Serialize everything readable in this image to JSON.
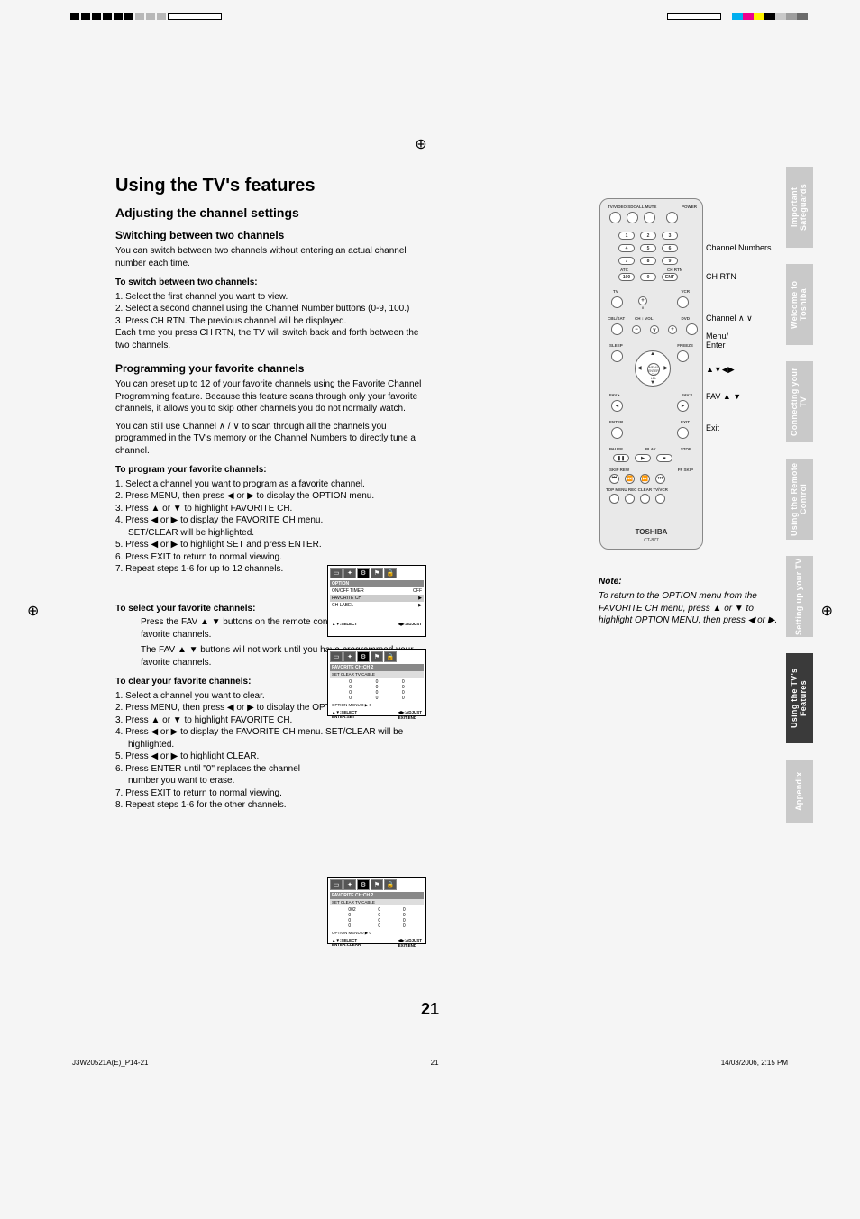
{
  "page_number": "21",
  "footer": {
    "left": "J3W20521A(E)_P14-21",
    "mid": "21",
    "right": "14/03/2006, 2:15 PM"
  },
  "colors": {
    "cyan": "#00aeef",
    "magenta": "#ec008c",
    "yellow": "#fff200",
    "tab_inactive": "#c9c9c9",
    "tab_active": "#3a3a3a"
  },
  "tabs": [
    "Important Safeguards",
    "Welcome to Toshiba",
    "Connecting your TV",
    "Using the Remote Control",
    "Setting up your TV",
    "Using the TV's Features",
    "Appendix"
  ],
  "tabs_active_index": 5,
  "h1": "Using the TV's features",
  "h2": "Adjusting the channel settings",
  "switch": {
    "title": "Switching between two channels",
    "intro": "You can switch between two channels without entering an actual channel number each time.",
    "sub": "To switch between two channels:",
    "steps": [
      "1. Select the first channel you want to view.",
      "2. Select a second channel using the Channel Number buttons (0-9, 100.)",
      "3. Press CH RTN. The previous channel will be displayed."
    ],
    "outro": "Each time you press CH RTN, the TV will switch back and forth between the two channels."
  },
  "program": {
    "title": "Programming your favorite channels",
    "p1": "You can preset up to 12 of your favorite channels using the Favorite Channel Programming feature. Because this feature scans through only your favorite channels, it allows you to skip other channels you do not normally watch.",
    "p2": "You can still use Channel ∧ / ∨ to scan through all the channels you programmed in the TV's memory or the Channel Numbers to directly tune a channel.",
    "sub": "To program your favorite channels:",
    "steps": [
      "1. Select a channel you want to program as a favorite channel.",
      "2. Press MENU, then press ◀ or ▶ to display the OPTION menu.",
      "3. Press ▲ or ▼ to highlight FAVORITE CH.",
      "4. Press ◀ or ▶ to display the FAVORITE CH menu. SET/CLEAR will be highlighted.",
      "5. Press ◀ or ▶ to highlight SET and press ENTER.",
      "6. Press EXIT to return to normal viewing.",
      "7. Repeat steps 1-6 for up to 12 channels."
    ]
  },
  "select": {
    "sub": "To select your favorite channels:",
    "p1": "Press the FAV ▲ ▼ buttons on the remote control to select your favorite channels.",
    "p2": "The FAV ▲ ▼ buttons will not work until you have programmed your favorite channels."
  },
  "clear": {
    "sub": "To clear your favorite channels:",
    "steps": [
      "1. Select a channel you want to clear.",
      "2. Press MENU, then press ◀ or ▶ to display the OPTION menu.",
      "3. Press ▲ or ▼ to highlight FAVORITE CH.",
      "4. Press ◀ or ▶ to display the FAVORITE CH menu. SET/CLEAR will be highlighted.",
      "5. Press ◀ or ▶ to highlight CLEAR.",
      "6. Press ENTER until \"0\" replaces the channel number you want to erase.",
      "7. Press EXIT to return to normal viewing.",
      "8. Repeat steps 1-6 for the other channels."
    ]
  },
  "menu1": {
    "title": "OPTION",
    "rows": [
      [
        "ON/OFF TIMER",
        "OFF"
      ],
      [
        "FAVORITE CH",
        "▶"
      ],
      [
        "CH LABEL",
        "▶"
      ]
    ],
    "foot": [
      "▲▼:SELECT",
      "◀▶:ADJUST"
    ]
  },
  "menu2": {
    "title": "FAVORITE CH:CH          2",
    "bar": "SET   CLEAR     TV     CABLE",
    "grid": [
      [
        "0",
        "0",
        "0"
      ],
      [
        "0",
        "0",
        "0"
      ],
      [
        "0",
        "0",
        "0"
      ],
      [
        "0",
        "0",
        "0"
      ]
    ],
    "opt": "OPTION MENU          0    ▶    0",
    "foot": [
      "▲▼:SELECT\nENTER:SET",
      "◀▶:ADJUST\nEXIT:END"
    ]
  },
  "menu3": {
    "title": "FAVORITE CH:CH          2",
    "bar": "SET   CLEAR     TV     CABLE",
    "grid": [
      [
        "002",
        "0",
        "0"
      ],
      [
        "0",
        "0",
        "0"
      ],
      [
        "0",
        "0",
        "0"
      ],
      [
        "0",
        "0",
        "0"
      ]
    ],
    "opt": "OPTION MENU          0    ▶    0",
    "foot": [
      "▲▼:SELECT\nENTER:CLEAR",
      "◀▶:ADJUST\nEXIT:END"
    ]
  },
  "remote": {
    "brand": "TOSHIBA",
    "model": "CT-877",
    "labels": {
      "ch_num": "Channel Numbers",
      "ch_rtn": "CH RTN",
      "ch_updn": "Channel ∧ ∨",
      "menu": "Menu/\nEnter",
      "arrows": "▲▼◀▶",
      "fav": "FAV ▲ ▼",
      "exit": "Exit"
    }
  },
  "note": {
    "title": "Note:",
    "body": "To return to the OPTION menu from the FAVORITE CH menu, press ▲ or ▼ to highlight OPTION MENU, then press ◀ or ▶."
  }
}
